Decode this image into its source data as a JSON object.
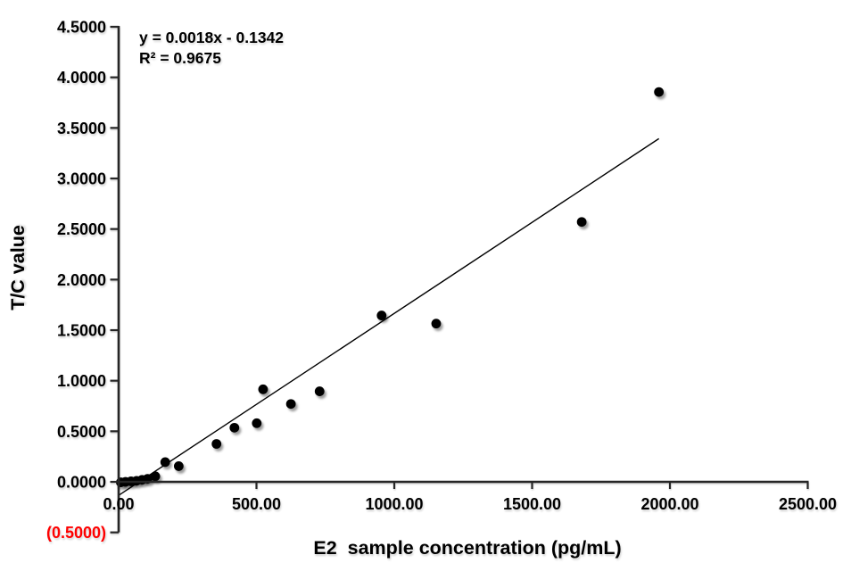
{
  "figure": {
    "background": "#ffffff",
    "colors": {
      "marker": "#000000",
      "trendline": "#000000",
      "axis": "#262626",
      "text": "#000000",
      "negative_tick_label": "#ff0000"
    }
  },
  "chart_data": {
    "type": "scatter",
    "title": "",
    "xlabel": "E2  sample concentration (pg/mL)",
    "ylabel": "T/C value",
    "xlim": [
      0,
      2500
    ],
    "ylim": [
      -0.5,
      4.5
    ],
    "grid": false,
    "legend": false,
    "x_ticks": [
      {
        "value": 0,
        "label": "0.00"
      },
      {
        "value": 500,
        "label": "500.00"
      },
      {
        "value": 1000,
        "label": "1000.00"
      },
      {
        "value": 1500,
        "label": "1500.00"
      },
      {
        "value": 2000,
        "label": "2000.00"
      },
      {
        "value": 2500,
        "label": "2500.00"
      }
    ],
    "y_ticks": [
      {
        "value": 4.5,
        "label": "4.5000"
      },
      {
        "value": 4.0,
        "label": "4.0000"
      },
      {
        "value": 3.5,
        "label": "3.5000"
      },
      {
        "value": 3.0,
        "label": "3.0000"
      },
      {
        "value": 2.5,
        "label": "2.5000"
      },
      {
        "value": 2.0,
        "label": "2.0000"
      },
      {
        "value": 1.5,
        "label": "1.5000"
      },
      {
        "value": 1.0,
        "label": "1.0000"
      },
      {
        "value": 0.5,
        "label": "0.5000"
      },
      {
        "value": 0.0,
        "label": "0.0000"
      },
      {
        "value": -0.5,
        "label": "(0.5000)",
        "negative": true
      }
    ],
    "points": [
      [
        8,
        -0.005
      ],
      [
        25,
        0.0
      ],
      [
        45,
        0.005
      ],
      [
        65,
        0.01
      ],
      [
        85,
        0.02
      ],
      [
        105,
        0.03
      ],
      [
        133,
        0.055
      ],
      [
        169,
        0.195
      ],
      [
        218,
        0.155
      ],
      [
        355,
        0.375
      ],
      [
        420,
        0.535
      ],
      [
        501,
        0.58
      ],
      [
        524,
        0.915
      ],
      [
        625,
        0.77
      ],
      [
        729,
        0.895
      ],
      [
        954,
        1.645
      ],
      [
        1152,
        1.565
      ],
      [
        1680,
        2.57
      ],
      [
        1960,
        3.855
      ]
    ],
    "trendline": {
      "slope": 0.0018,
      "intercept": -0.1342,
      "x_start": 0,
      "x_end": 1960,
      "equation": "y = 0.0018x - 0.1342",
      "r_squared": "R² = 0.9675"
    }
  }
}
